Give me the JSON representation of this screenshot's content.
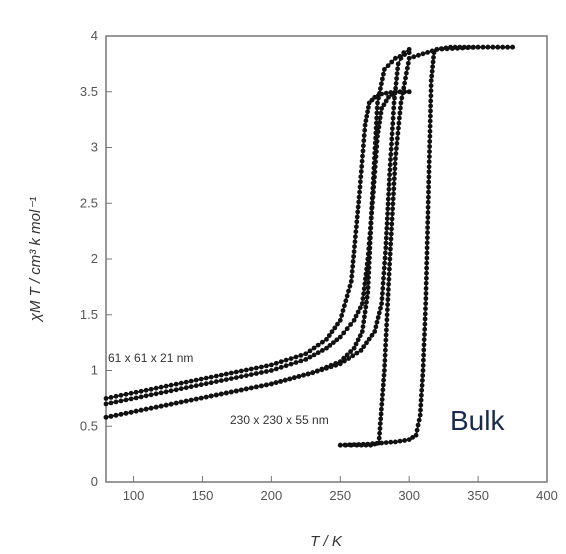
{
  "chart_data": {
    "type": "scatter",
    "xlabel": "T / K",
    "ylabel": "χM T / cm³ k mol⁻¹",
    "xlim": [
      80,
      400
    ],
    "ylim": [
      0,
      4
    ],
    "xticks": [
      100,
      150,
      200,
      250,
      300,
      350,
      400
    ],
    "yticks": [
      0,
      0.5,
      1,
      1.5,
      2,
      2.5,
      3,
      3.5,
      4
    ],
    "ytick_labels": [
      "0",
      "0.5",
      "1",
      "1.5",
      "2",
      "2.5",
      "3",
      "3.5",
      "4"
    ],
    "grid": false,
    "series": [
      {
        "name": "61 x 61 x 21 nm",
        "branches": [
          {
            "x": [
              80,
              120,
              160,
              200,
              225,
              240,
              250,
              258,
              264,
              268,
              271,
              275,
              280,
              290,
              300
            ],
            "y": [
              0.75,
              0.85,
              0.95,
              1.05,
              1.15,
              1.28,
              1.45,
              1.8,
              2.6,
              3.2,
              3.4,
              3.45,
              3.48,
              3.5,
              3.5
            ]
          },
          {
            "x": [
              80,
              120,
              160,
              200,
              225,
              240,
              250,
              260,
              266,
              270,
              274,
              277,
              280,
              285,
              290,
              300
            ],
            "y": [
              0.7,
              0.8,
              0.9,
              1.0,
              1.1,
              1.2,
              1.3,
              1.45,
              1.6,
              2.0,
              2.6,
              3.1,
              3.35,
              3.45,
              3.5,
              3.5
            ]
          }
        ]
      },
      {
        "name": "230 x 230 x 55 nm",
        "branches": [
          {
            "x": [
              80,
              120,
              160,
              200,
              230,
              250,
              260,
              266,
              270,
              273,
              277,
              282,
              290,
              300
            ],
            "y": [
              0.58,
              0.68,
              0.78,
              0.88,
              0.98,
              1.08,
              1.2,
              1.35,
              1.7,
              2.5,
              3.4,
              3.7,
              3.8,
              3.85
            ]
          },
          {
            "x": [
              80,
              120,
              160,
              200,
              230,
              250,
              265,
              275,
              280,
              283,
              286,
              289,
              292,
              296,
              300
            ],
            "y": [
              0.58,
              0.68,
              0.78,
              0.88,
              0.98,
              1.06,
              1.18,
              1.35,
              1.6,
              2.1,
              2.8,
              3.4,
              3.75,
              3.85,
              3.88
            ]
          }
        ]
      },
      {
        "name": "Bulk",
        "branches": [
          {
            "x": [
              250,
              262,
              272,
              278,
              282,
              286,
              290,
              294,
              300,
              320,
              350,
              375
            ],
            "y": [
              0.33,
              0.33,
              0.33,
              0.35,
              1.0,
              2.0,
              2.9,
              3.4,
              3.8,
              3.88,
              3.9,
              3.9
            ]
          },
          {
            "x": [
              250,
              270,
              290,
              300,
              305,
              308,
              310,
              312,
              314,
              316,
              318,
              320,
              330,
              350,
              375
            ],
            "y": [
              0.33,
              0.34,
              0.36,
              0.38,
              0.42,
              0.6,
              1.0,
              1.6,
              2.6,
              3.6,
              3.85,
              3.88,
              3.9,
              3.9,
              3.9
            ]
          }
        ]
      }
    ],
    "annotations": [
      {
        "text": "61 x 61 x 21 nm"
      },
      {
        "text": "230 x 230 x 55 nm"
      },
      {
        "text": "Bulk"
      }
    ]
  }
}
